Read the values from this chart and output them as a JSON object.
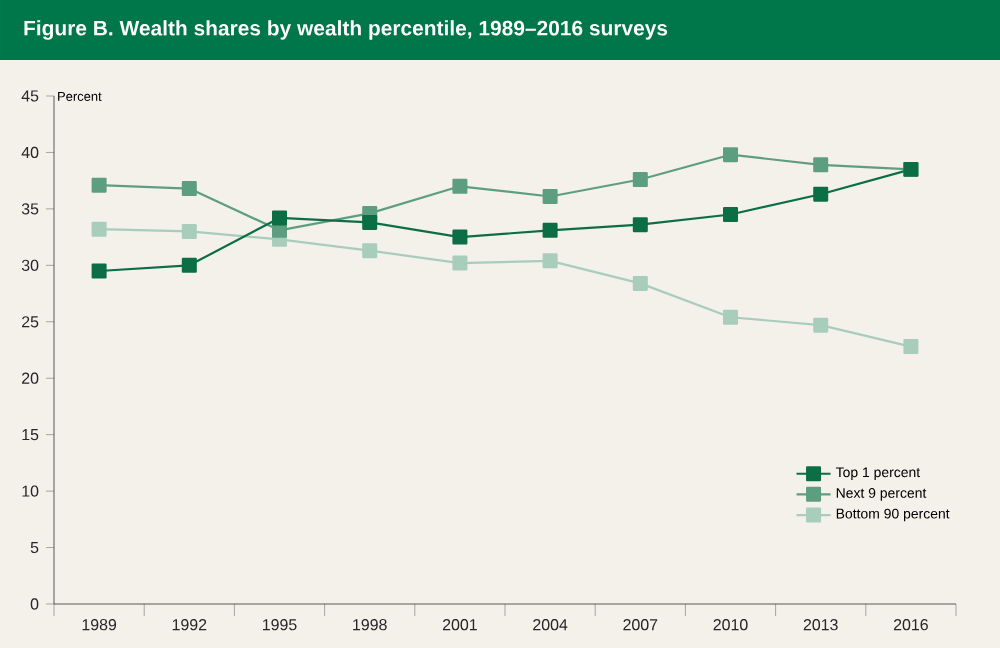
{
  "chart_data": {
    "type": "line",
    "title": "Figure B. Wealth shares by wealth percentile, 1989–2016 surveys",
    "ylabel": "Percent",
    "categories": [
      "1989",
      "1992",
      "1995",
      "1998",
      "2001",
      "2004",
      "2007",
      "2010",
      "2013",
      "2016"
    ],
    "series": [
      {
        "name": "Top 1 percent",
        "color": "#0b6e45",
        "values": [
          29.5,
          30.0,
          34.2,
          33.8,
          32.5,
          33.1,
          33.6,
          34.5,
          36.3,
          38.5
        ]
      },
      {
        "name": "Next 9 percent",
        "color": "#5e9e80",
        "values": [
          37.1,
          36.8,
          33.1,
          34.6,
          37.0,
          36.1,
          37.6,
          39.8,
          38.9,
          38.5
        ]
      },
      {
        "name": "Bottom 90 percent",
        "color": "#a9cdbb",
        "values": [
          33.2,
          33.0,
          32.3,
          31.3,
          30.2,
          30.4,
          28.4,
          25.4,
          24.7,
          22.8
        ]
      }
    ],
    "ylim": [
      0,
      45
    ],
    "yticks": [
      0,
      5,
      10,
      15,
      20,
      25,
      30,
      35,
      40,
      45
    ],
    "grid": false,
    "legend": "bottom right",
    "marker": "square",
    "line_style": "solid"
  }
}
